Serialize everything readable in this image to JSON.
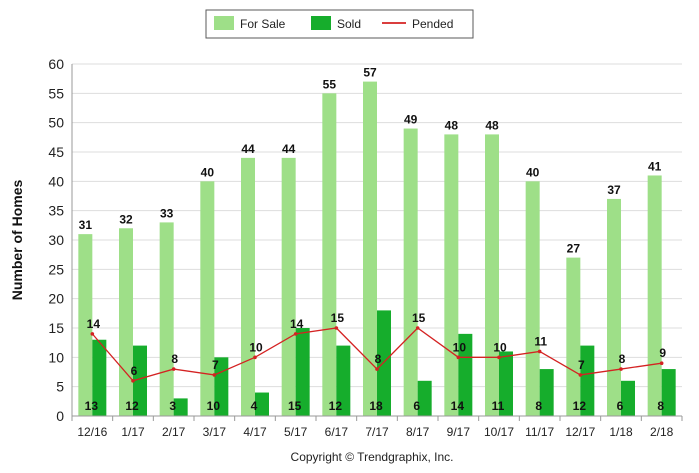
{
  "chart_data": {
    "type": "bar",
    "categories": [
      "12/16",
      "1/17",
      "2/17",
      "3/17",
      "4/17",
      "5/17",
      "6/17",
      "7/17",
      "8/17",
      "9/17",
      "10/17",
      "11/17",
      "12/17",
      "1/18",
      "2/18"
    ],
    "series": [
      {
        "name": "For Sale",
        "kind": "bar",
        "color": "#9edf88",
        "values": [
          31,
          32,
          33,
          40,
          44,
          44,
          55,
          57,
          49,
          48,
          48,
          40,
          27,
          37,
          41
        ]
      },
      {
        "name": "Sold",
        "kind": "bar",
        "color": "#16ad2c",
        "values": [
          13,
          12,
          3,
          10,
          4,
          15,
          12,
          18,
          6,
          14,
          11,
          8,
          12,
          6,
          8
        ]
      },
      {
        "name": "Pended",
        "kind": "line",
        "color": "#d42222",
        "values": [
          14,
          6,
          8,
          7,
          10,
          14,
          15,
          8,
          15,
          10,
          10,
          11,
          7,
          8,
          9
        ]
      }
    ],
    "title": "",
    "xlabel": "",
    "ylabel": "Number of Homes",
    "ylim": [
      0,
      60
    ],
    "yticks": [
      0,
      5,
      10,
      15,
      20,
      25,
      30,
      35,
      40,
      45,
      50,
      55,
      60
    ],
    "grid": true,
    "legend": "top-center",
    "copyright": "Copyright © Trendgraphix, Inc."
  }
}
